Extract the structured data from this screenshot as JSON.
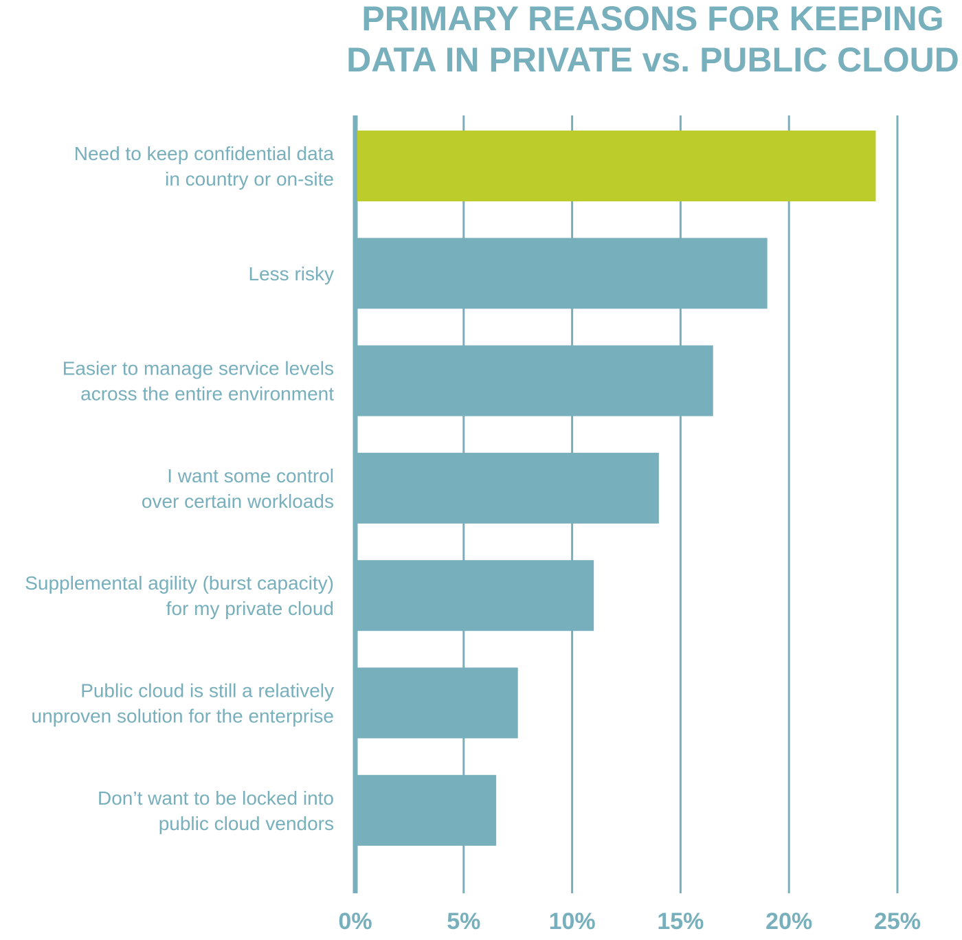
{
  "chart_data": {
    "type": "bar",
    "orientation": "horizontal",
    "title_lines": [
      "PRIMARY REASONS FOR KEEPING",
      "DATA IN PRIVATE vs. PUBLIC CLOUD"
    ],
    "categories": [
      [
        "Need to keep confidential data",
        "in country or on-site"
      ],
      [
        "Less risky"
      ],
      [
        "Easier to manage service levels",
        "across the entire environment"
      ],
      [
        "I want some control",
        "over certain workloads"
      ],
      [
        "Supplemental agility (burst capacity)",
        "for my private cloud"
      ],
      [
        "Public cloud is still a relatively",
        "unproven solution for the enterprise"
      ],
      [
        "Don’t want to be locked into",
        "public cloud vendors"
      ]
    ],
    "values": [
      24,
      19,
      16.5,
      14,
      11,
      7.5,
      6.5
    ],
    "x_ticks": [
      "0%",
      "5%",
      "10%",
      "15%",
      "20%",
      "25%"
    ],
    "xlim": [
      0,
      25
    ],
    "grid": true,
    "legend": "none",
    "colors": {
      "highlight_bar": "#bccd2b",
      "bar": "#78afbc",
      "grid": "#78afbc",
      "text": "#78afbc"
    }
  }
}
